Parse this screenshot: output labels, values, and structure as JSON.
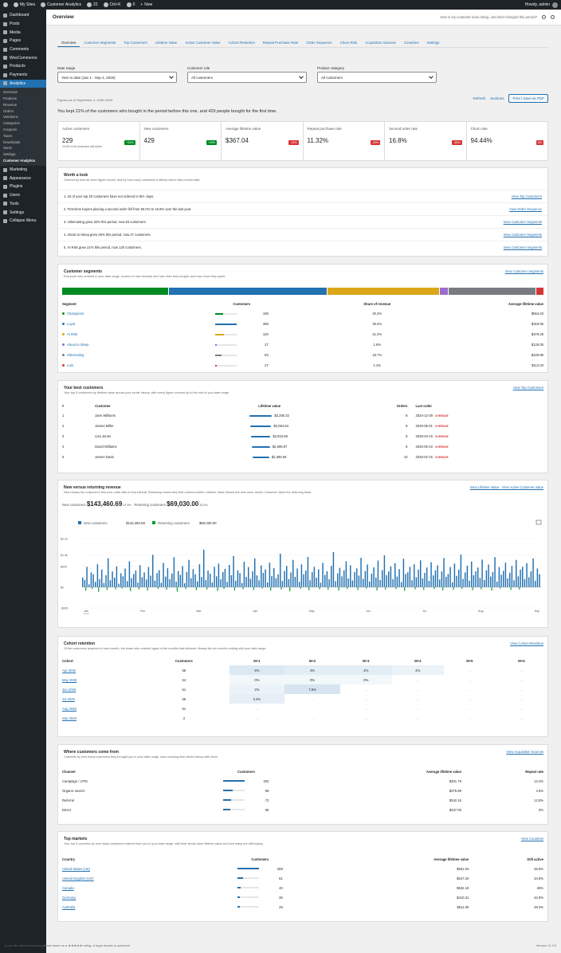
{
  "adminbar": {
    "site": "My Sites",
    "app": "Customer Analytics",
    "updates": "22",
    "search": "Ctrl+K",
    "comments": "0",
    "new": "New",
    "howdy": "Howdy, admin"
  },
  "sidebar": {
    "items": [
      {
        "label": "Dashboard"
      },
      {
        "label": "Posts"
      },
      {
        "label": "Media"
      },
      {
        "label": "Pages"
      },
      {
        "label": "Comments"
      },
      {
        "label": "WooCommerce"
      },
      {
        "label": "Products"
      },
      {
        "label": "Payments"
      },
      {
        "label": "Analytics"
      }
    ],
    "analytics_sub": [
      "Overview",
      "Products",
      "Revenue",
      "Orders",
      "Variations",
      "Categories",
      "Coupons",
      "Taxes",
      "Downloads",
      "Stock",
      "Settings",
      "Customer Analytics"
    ],
    "items2": [
      {
        "label": "Marketing"
      },
      {
        "label": "Appearance"
      },
      {
        "label": "Plugins"
      },
      {
        "label": "Users"
      },
      {
        "label": "Tools"
      },
      {
        "label": "Settings"
      },
      {
        "label": "Collapse Menu"
      }
    ]
  },
  "header": {
    "title": "Overview",
    "hint": "How is my customer base doing, and what changed this period?"
  },
  "tabs": [
    "Overview",
    "Customer Segments",
    "Top Customers",
    "Lifetime Value",
    "Active Customer Value",
    "Cohort Retention",
    "Repeat Purchase Rate",
    "Order Sequence",
    "Churn Risk",
    "Acquisition Sources",
    "Countries",
    "Settings"
  ],
  "filters": {
    "date_label": "Date range",
    "date_value": "Year to date (Jan 1 - Sep 4, 2026)",
    "role_label": "Customer role",
    "role_value": "All customers",
    "cat_label": "Product category",
    "cat_value": "All customers"
  },
  "asof": "Figures as of September 4, 2026 09:09",
  "actions": {
    "refresh": "Refresh",
    "sections": "Sections",
    "print": "Print / Save as PDF"
  },
  "headline": "You kept 21% of the customers who bought in the period before this one, and 429 people bought for the first time.",
  "kpis": [
    {
      "label": "Active customers",
      "value": "229",
      "sub": "20.8% of all customers still active",
      "badge": "+16%",
      "color": "#008a20"
    },
    {
      "label": "New customers",
      "value": "429",
      "sub": "",
      "badge": "+18%",
      "color": "#008a20"
    },
    {
      "label": "Average lifetime value",
      "value": "$367.04",
      "sub": "",
      "badge": "-15%",
      "color": "#d63638"
    },
    {
      "label": "Repeat purchase rate",
      "value": "11.32%",
      "sub": "",
      "badge": "-29%",
      "color": "#d63638"
    },
    {
      "label": "Second order rate",
      "value": "16.8%",
      "sub": "",
      "badge": "-66%",
      "color": "#d63638"
    },
    {
      "label": "Churn rate",
      "value": "94.44%",
      "sub": "",
      "badge": "6%",
      "color": "#d63638"
    }
  ],
  "worth": {
    "title": "Worth a look",
    "desc": "Ordered by how far each figure moved, and by how many customers it affects where lists moved alike.",
    "items": [
      {
        "text": "1. 16 of your top 20 customers have not ordered in 90+ days.",
        "link": "View Top Customers"
      },
      {
        "text": "2. First-time buyers placing a second order fell from 50.0% to 16.8% over the last year.",
        "link": "View Order Sequence"
      },
      {
        "text": "3. Hibernating grew 32% this period, now 83 customers.",
        "link": "View Customer Segments"
      },
      {
        "text": "4. About to Sleep grew 29% this period, now 27 customers.",
        "link": "View Customer Segments"
      },
      {
        "text": "5. At Risk grew 21% this period, now 120 customers.",
        "link": "View Customer Segments"
      }
    ]
  },
  "segments": {
    "title": "Customer segments",
    "desc": "Everyone who ordered in your date range, scored on how recently and how often they bought, and how much they spent.",
    "link": "View Customer Segments",
    "headers": [
      "Segment",
      "Customers",
      "Share of revenue",
      "Average lifetime value"
    ],
    "rows": [
      {
        "name": "Champions",
        "count": "109",
        "n": 109,
        "share": "20.4%",
        "share_n": 20.4,
        "avg": "$554.03",
        "color": "#008a20"
      },
      {
        "name": "Loyal",
        "count": "288",
        "n": 288,
        "share": "30.4%",
        "share_n": 30.4,
        "avg": "$318.95",
        "color": "#2271b1"
      },
      {
        "name": "At Risk",
        "count": "120",
        "n": 120,
        "share": "21.4%",
        "share_n": 21.4,
        "avg": "$379.26",
        "color": "#dba617"
      },
      {
        "name": "About to Sleep",
        "count": "27",
        "n": 27,
        "share": "1.6%",
        "share_n": 1.6,
        "avg": "$125.05",
        "color": "#9b6bce"
      },
      {
        "name": "Hibernating",
        "count": "83",
        "n": 83,
        "share": "16.7%",
        "share_n": 16.7,
        "avg": "$426.96",
        "color": "#787c82"
      },
      {
        "name": "Lost",
        "count": "27",
        "n": 27,
        "share": "1.4%",
        "share_n": 1.4,
        "avg": "$112.03",
        "color": "#d63638"
      }
    ]
  },
  "best": {
    "title": "Your best customers",
    "desc": "Your top 5 customers by lifetime value across your whole history, with every figure counted up to the end of your date range.",
    "link": "View Top Customers",
    "headers": [
      "#",
      "Customer",
      "Lifetime value",
      "Orders",
      "Last order"
    ],
    "overdue": "OVERDUE",
    "rows": [
      {
        "rank": "1",
        "name": "Jane Williams",
        "ltv": "$3,290.32",
        "ltv_n": 3290.32,
        "orders": "8",
        "last": "2024-12-29"
      },
      {
        "rank": "2",
        "name": "James Miller",
        "ltv": "$3,054.53",
        "ltv_n": 3054.53,
        "orders": "8",
        "last": "2026-05-01"
      },
      {
        "rank": "3",
        "name": "Lisa Jones",
        "ltv": "$2,815.59",
        "ltv_n": 2815.59,
        "orders": "8",
        "last": "2026-04-15"
      },
      {
        "rank": "4",
        "name": "David Williams",
        "ltv": "$2,699.87",
        "ltv_n": 2699.87,
        "orders": "6",
        "last": "2025-06-10"
      },
      {
        "rank": "5",
        "name": "James Davis",
        "ltv": "$2,486.56",
        "ltv_n": 2486.56,
        "orders": "10",
        "last": "2026-02-15"
      }
    ]
  },
  "nvr": {
    "title": "New versus returning revenue",
    "desc": "New means the customer's first-ever order falls in that interval. Returning means they first ordered earlier. Lifetime Value follows the new ones, Active Customer Value the returning base.",
    "link1": "View Lifetime Value",
    "link2": "View Active Customer Value",
    "new_label": "New customers",
    "new_value": "$143,460.69",
    "new_pct": "67.5%",
    "ret_label": "Returning customers",
    "ret_value": "$69,030.00",
    "ret_pct": "32.5%"
  },
  "chart_data": {
    "type": "bar",
    "title": "",
    "series": [
      {
        "name": "New customers",
        "total": "$143,460.69"
      },
      {
        "name": "Returning customers",
        "total": "$69,030.00"
      }
    ],
    "yticks": [
      "$2.1k",
      "$1.4k",
      "$900",
      "$0",
      "-$900"
    ],
    "xticks": [
      "Jan",
      "Feb",
      "Mar",
      "Apr",
      "May",
      "Jun",
      "Jul",
      "Aug",
      "Sep"
    ],
    "xsub": "2026",
    "ylim": [
      -900,
      2100
    ],
    "new": [
      420,
      310,
      880,
      120,
      640,
      560,
      230,
      990,
      350,
      760,
      180,
      520,
      1250,
      300,
      680,
      410,
      900,
      150,
      600,
      470,
      810,
      260,
      1120,
      390,
      570,
      720,
      200,
      950,
      430,
      640,
      330,
      870,
      500,
      1400,
      280,
      610,
      740,
      190,
      1050,
      460,
      820,
      350,
      590,
      1300,
      240,
      700,
      530,
      910,
      170,
      660,
      1180,
      390,
      780,
      560,
      250,
      990,
      440,
      1620,
      310,
      720,
      580,
      200,
      880,
      470,
      1020,
      340,
      650,
      790,
      230,
      960,
      520,
      1350,
      280,
      730,
      610,
      180,
      1100,
      440,
      870,
      360,
      690,
      1240,
      510,
      300,
      940,
      620,
      770,
      210,
      1060,
      480,
      830,
      390,
      560,
      1450,
      270,
      700,
      920,
      350,
      640,
      1180,
      450,
      810,
      230,
      990,
      560,
      720,
      1310,
      300,
      650,
      880,
      410,
      770,
      190,
      1050,
      530,
      690,
      340,
      920,
      1520,
      260,
      600,
      840,
      470,
      730,
      1120,
      380,
      950,
      290,
      660,
      810,
      500,
      1270,
      360,
      700,
      980,
      240,
      590,
      860,
      420,
      1150,
      310,
      740,
      1380,
      520,
      680,
      900,
      350,
      1040,
      460,
      780,
      220,
      1230,
      570,
      640,
      880,
      300,
      990,
      430,
      760,
      1160,
      380,
      620,
      850,
      270,
      1080,
      510,
      730,
      940,
      330,
      680,
      1260,
      450,
      570,
      870,
      210,
      1020,
      490,
      760,
      1410,
      360,
      640,
      930,
      280,
      1110,
      520,
      690,
      850,
      400,
      1190,
      310,
      730,
      980,
      460,
      650,
      1300,
      240,
      870,
      540,
      710,
      1060,
      380,
      620,
      920,
      300,
      1180,
      470,
      760,
      880,
      350,
      1040,
      430,
      690,
      1240,
      280,
      810,
      560
    ],
    "ret": [
      0,
      -150,
      0,
      0,
      -80,
      0,
      0,
      -200,
      0,
      0,
      0,
      -120,
      0,
      0,
      0,
      -90,
      0,
      0,
      -60,
      0,
      0,
      0,
      -170,
      0,
      0,
      0,
      -100,
      0,
      0,
      0,
      -140,
      0,
      0,
      0,
      0,
      -70,
      0,
      0,
      0,
      -110,
      0,
      0,
      0,
      0,
      -190,
      0,
      0,
      0,
      -80,
      0,
      0,
      0,
      0,
      -130,
      0,
      0,
      0,
      0,
      -95,
      0,
      0,
      0,
      0,
      -160,
      0,
      0,
      -75,
      0,
      0,
      0,
      0,
      -140,
      0,
      0,
      0,
      -85,
      0,
      0,
      0,
      0,
      -120,
      0,
      0,
      0,
      -60,
      0,
      0,
      0,
      -150,
      0,
      0,
      0,
      0,
      -100,
      0,
      0,
      0,
      -180,
      0,
      0,
      0,
      0,
      -70,
      0,
      0,
      0,
      -130,
      0,
      0,
      0,
      0,
      -90,
      0,
      0,
      0,
      -110,
      0,
      0,
      0,
      0,
      -150,
      0,
      0,
      0,
      -80,
      0,
      0,
      0,
      0,
      -120,
      0,
      0,
      0,
      -60,
      0,
      0,
      0,
      0,
      -140,
      0,
      0,
      0,
      -100,
      0,
      0,
      0,
      0,
      -75,
      0,
      0,
      0,
      -160,
      0,
      0,
      0,
      0,
      -90,
      0,
      0,
      0,
      -120,
      0,
      0,
      0,
      0,
      -80,
      0,
      0,
      0,
      -140,
      0,
      0,
      0,
      0,
      -110,
      0,
      0,
      0,
      -70,
      0,
      0,
      0,
      0,
      -130,
      0,
      0,
      0,
      -90,
      0,
      0,
      0,
      0,
      -150,
      0,
      0,
      0,
      -60,
      0,
      0,
      0,
      0,
      -120,
      0,
      0,
      0,
      -100,
      0,
      0
    ]
  },
  "cohort": {
    "title": "Cohort retention",
    "desc": "Of the customers acquired in each month, the share who ordered again in the months that followed. Always the six months ending with your date range.",
    "link": "View Cohort Retention",
    "headers": [
      "Cohort",
      "Customers",
      "M+1",
      "M+2",
      "M+3",
      "M+4",
      "M+5",
      "M+6"
    ],
    "rows": [
      {
        "name": "Apr 2026",
        "n": "58",
        "cells": [
          "6%",
          "4%",
          "4%",
          "2%",
          "...",
          "..."
        ]
      },
      {
        "name": "May 2026",
        "n": "54",
        "cells": [
          "0%",
          "0%",
          "0%",
          "...",
          "...",
          "..."
        ]
      },
      {
        "name": "Jun 2026",
        "n": "51",
        "cells": [
          "2%",
          "7.8%",
          "...",
          "...",
          "...",
          "..."
        ]
      },
      {
        "name": "Jul 2026",
        "n": "58",
        "cells": [
          "3.4%",
          "...",
          "...",
          "...",
          "...",
          "..."
        ]
      },
      {
        "name": "Aug 2026",
        "n": "61",
        "cells": [
          "...",
          "...",
          "...",
          "...",
          "...",
          "..."
        ]
      },
      {
        "name": "Sep 2026",
        "n": "3",
        "cells": [
          "...",
          "...",
          "...",
          "...",
          "...",
          "..."
        ]
      }
    ]
  },
  "channels": {
    "title": "Where customers come from",
    "desc": "Channels by how many customers they brought you in your date range, each carrying their whole history with them.",
    "link": "View Acquisition Sources",
    "headers": [
      "Channel",
      "Customers",
      "Average lifetime value",
      "Repeat rate"
    ],
    "rows": [
      {
        "name": "Campaign / UTM",
        "count": "202",
        "n": 202,
        "avg": "$301.78",
        "rate": "12.4%"
      },
      {
        "name": "Organic search",
        "count": "89",
        "n": 89,
        "avg": "$375.99",
        "rate": "4.5%"
      },
      {
        "name": "Referral",
        "count": "72",
        "n": 72,
        "avg": "$342.16",
        "rate": "12.5%"
      },
      {
        "name": "Direct",
        "count": "66",
        "n": 66,
        "avg": "$337.06",
        "rate": "3%"
      }
    ]
  },
  "markets": {
    "title": "Top markets",
    "desc": "Your top 5 countries by how many customers ordered from you in your date range, with their whole-store lifetime value and how many are still buying.",
    "link": "View Countries",
    "headers": [
      "Country",
      "Customers",
      "Average lifetime value",
      "Still active"
    ],
    "rows": [
      {
        "name": "United States (US)",
        "count": "289",
        "n": 289,
        "avg": "$561.03",
        "active": "36.8%"
      },
      {
        "name": "United Kingdom (UK)",
        "count": "81",
        "n": 81,
        "avg": "$547.34",
        "active": "34.6%"
      },
      {
        "name": "Canada",
        "count": "40",
        "n": 40,
        "avg": "$532.18",
        "active": "45%"
      },
      {
        "name": "Germany",
        "count": "35",
        "n": 35,
        "avg": "$410.31",
        "active": "42.9%"
      },
      {
        "name": "Australia",
        "count": "29",
        "n": 29,
        "avg": "$511.09",
        "active": "48.3%"
      }
    ]
  },
  "footer": {
    "text": "If you like WooCommerce please leave us a ★★★★★ rating. A huge thanks in advance!",
    "version": "Version 11.3.0"
  }
}
